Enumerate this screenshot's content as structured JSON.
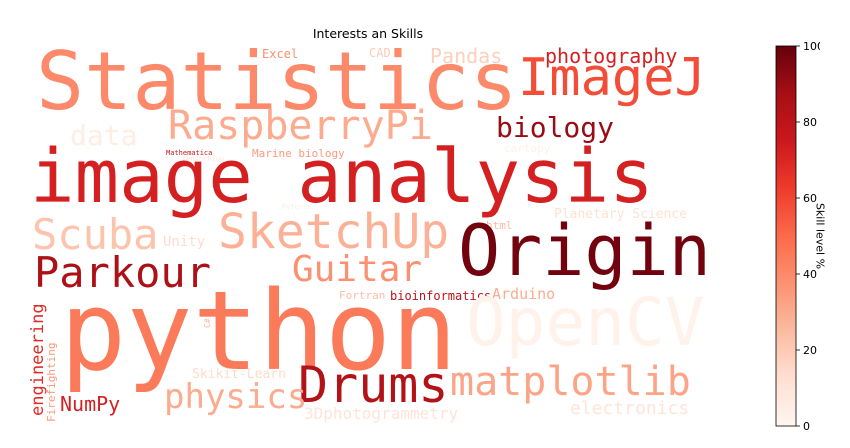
{
  "chart_data": {
    "type": "wordcloud",
    "title": "Interests an Skills",
    "colormap": "Reds",
    "words": [
      {
        "text": "Statistics",
        "value": 40
      },
      {
        "text": "ImageJ",
        "value": 58
      },
      {
        "text": "photography",
        "value": 72
      },
      {
        "text": "Pandas",
        "value": 18
      },
      {
        "text": "CAD",
        "value": 20
      },
      {
        "text": "Excel",
        "value": 38
      },
      {
        "text": "RaspberryPi",
        "value": 30
      },
      {
        "text": "biology",
        "value": 90
      },
      {
        "text": "data",
        "value": 5
      },
      {
        "text": "Mathematica",
        "value": 75
      },
      {
        "text": "TensorFlow",
        "value": 8
      },
      {
        "text": "Marine biology",
        "value": 35
      },
      {
        "text": "cartopy",
        "value": 3
      },
      {
        "text": "image analysis",
        "value": 72
      },
      {
        "text": "PyTorch",
        "value": 4
      },
      {
        "text": "Planetary Science",
        "value": 12
      },
      {
        "text": "html",
        "value": 25
      },
      {
        "text": "Scuba",
        "value": 22
      },
      {
        "text": "SketchUp",
        "value": 28
      },
      {
        "text": "Unity",
        "value": 14
      },
      {
        "text": "Origin",
        "value": 98
      },
      {
        "text": "Parkour",
        "value": 85
      },
      {
        "text": "Guitar",
        "value": 38
      },
      {
        "text": "Fortran",
        "value": 24
      },
      {
        "text": "bioinformatics",
        "value": 80
      },
      {
        "text": "Arduino",
        "value": 30
      },
      {
        "text": "python",
        "value": 45
      },
      {
        "text": "OpenCV",
        "value": 2
      },
      {
        "text": "engineering",
        "value": 68
      },
      {
        "text": "Firefighting",
        "value": 35
      },
      {
        "text": "C#",
        "value": 25
      },
      {
        "text": "Skikit-Learn",
        "value": 14
      },
      {
        "text": "Drums",
        "value": 83
      },
      {
        "text": "matplotlib",
        "value": 32
      },
      {
        "text": "NumPy",
        "value": 72
      },
      {
        "text": "physics",
        "value": 30
      },
      {
        "text": "3Dphotogrammetry",
        "value": 10
      },
      {
        "text": "electronics",
        "value": 10
      }
    ],
    "colorbar": {
      "label": "Skill level %",
      "range": [
        0,
        100
      ],
      "ticks": [
        "0",
        "20",
        "40",
        "60",
        "80",
        "100"
      ]
    }
  }
}
